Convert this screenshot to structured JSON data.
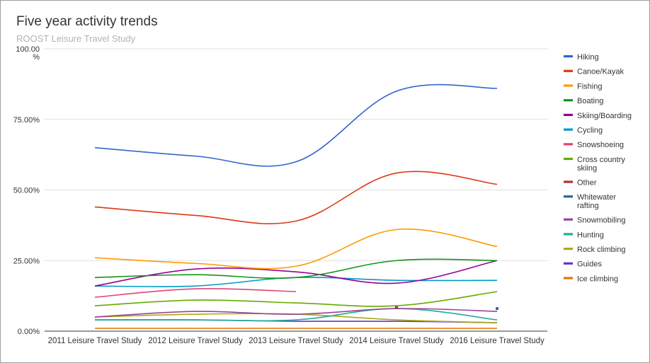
{
  "colors": {
    "gridline": "#e0e0e0",
    "axis": "#333333",
    "text": "#333333"
  },
  "chart_data": {
    "type": "line",
    "title": "Five year activity trends",
    "subtitle": "ROOST Leisure Travel Study",
    "ylabel_unit": "%",
    "ylim": [
      0,
      100
    ],
    "yticks": [
      {
        "value": 0,
        "label": "0.00%"
      },
      {
        "value": 25,
        "label": "25.00%"
      },
      {
        "value": 50,
        "label": "50.00%"
      },
      {
        "value": 75,
        "label": "75.00%"
      },
      {
        "value": 100,
        "label": "100.00"
      }
    ],
    "categories": [
      "2011 Leisure Travel Study",
      "2012 Leisure Travel Study",
      "2013 Leisure Travel Study",
      "2014 Leisure Travel Study",
      "2016 Leisure Travel Study"
    ],
    "legend_position": "right",
    "grid": true,
    "series": [
      {
        "name": "Hiking",
        "legend": [
          "Hiking"
        ],
        "color": "#3366cc",
        "values": [
          65,
          62,
          60,
          85,
          86
        ]
      },
      {
        "name": "Canoe/Kayak",
        "legend": [
          "Canoe/Kayak"
        ],
        "color": "#dc3912",
        "values": [
          44,
          41,
          39,
          56,
          52
        ]
      },
      {
        "name": "Fishing",
        "legend": [
          "Fishing"
        ],
        "color": "#ff9900",
        "values": [
          26,
          24,
          23,
          36,
          30
        ]
      },
      {
        "name": "Boating",
        "legend": [
          "Boating"
        ],
        "color": "#109618",
        "values": [
          19,
          20,
          19,
          25,
          25
        ]
      },
      {
        "name": "Skiing/Boarding",
        "legend": [
          "Skiing/Boarding"
        ],
        "color": "#990099",
        "values": [
          16,
          22,
          21,
          17,
          25
        ]
      },
      {
        "name": "Cycling",
        "legend": [
          "Cycling"
        ],
        "color": "#0099c6",
        "values": [
          16,
          16,
          19,
          18,
          18
        ]
      },
      {
        "name": "Snowshoeing",
        "legend": [
          "Snowshoeing"
        ],
        "color": "#dd4477",
        "values": [
          12,
          15,
          14,
          null,
          null
        ]
      },
      {
        "name": "Cross country skiing",
        "legend": [
          "Cross country",
          "skiing"
        ],
        "color": "#66aa00",
        "values": [
          9,
          11,
          10,
          9,
          14
        ]
      },
      {
        "name": "Other",
        "legend": [
          "Other"
        ],
        "color": "#b82e2e",
        "values": [
          null,
          null,
          null,
          8.5,
          null
        ]
      },
      {
        "name": "Whitewater rafting",
        "legend": [
          "Whitewater",
          "rafting"
        ],
        "color": "#316395",
        "values": [
          null,
          null,
          null,
          null,
          8
        ]
      },
      {
        "name": "Snowmobiling",
        "legend": [
          "Snowmobiling"
        ],
        "color": "#994499",
        "values": [
          5,
          7,
          6,
          8,
          7
        ]
      },
      {
        "name": "Hunting",
        "legend": [
          "Hunting"
        ],
        "color": "#22aa99",
        "values": [
          4,
          4,
          4,
          8,
          4
        ]
      },
      {
        "name": "Rock climbing",
        "legend": [
          "Rock climbing"
        ],
        "color": "#aaaa11",
        "values": [
          5,
          6,
          6,
          4,
          3
        ]
      },
      {
        "name": "Guides",
        "legend": [
          "Guides"
        ],
        "color": "#6633cc",
        "values": [
          4,
          4,
          3.5,
          3.5,
          3
        ]
      },
      {
        "name": "Ice climbing",
        "legend": [
          "Ice climbing"
        ],
        "color": "#e67300",
        "values": [
          1,
          1,
          1,
          1,
          1
        ]
      }
    ]
  }
}
